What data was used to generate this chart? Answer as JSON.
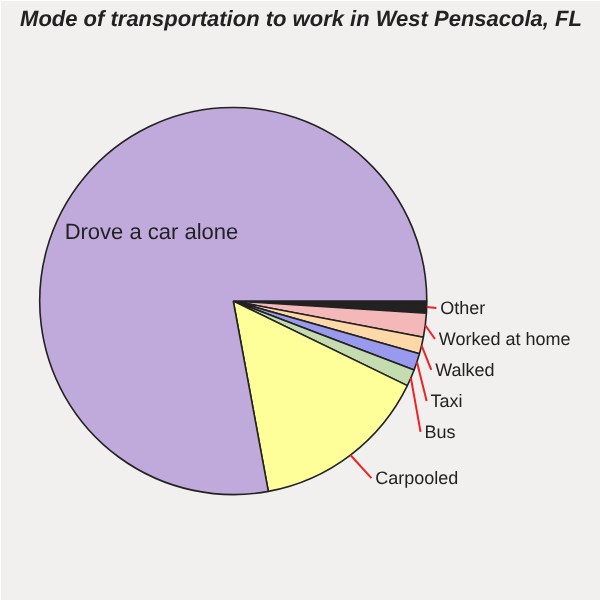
{
  "chart_data": {
    "type": "pie",
    "title": "Mode of transportation to work in West Pensacola, FL",
    "categories": [
      "Other",
      "Worked at home",
      "Walked",
      "Taxi",
      "Bus",
      "Carpooled",
      "Drove a car alone"
    ],
    "values": [
      1.0,
      2.0,
      1.4,
      1.4,
      1.4,
      14.9,
      77.9
    ],
    "colors": [
      "#222222",
      "#f4b8b8",
      "#ffd8a8",
      "#9999ee",
      "#c4dcb0",
      "#ffff99",
      "#c0aadc"
    ]
  }
}
